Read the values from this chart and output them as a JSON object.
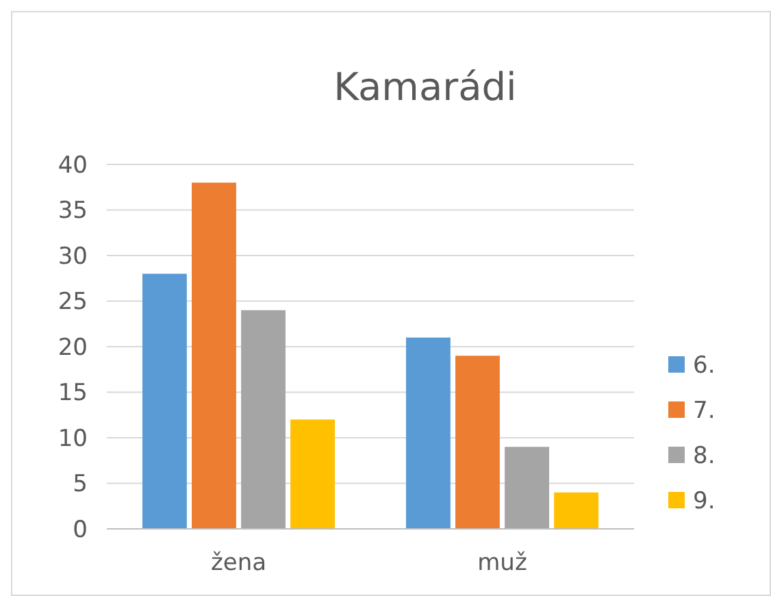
{
  "chart_data": {
    "type": "bar",
    "title": "Kamarádi",
    "categories": [
      "žena",
      "muž"
    ],
    "series": [
      {
        "name": "6.",
        "color": "#5b9bd5",
        "values": [
          28,
          21
        ]
      },
      {
        "name": "7.",
        "color": "#ed7d31",
        "values": [
          38,
          19
        ]
      },
      {
        "name": "8.",
        "color": "#a5a5a5",
        "values": [
          24,
          9
        ]
      },
      {
        "name": "9.",
        "color": "#ffc000",
        "values": [
          12,
          4
        ]
      }
    ],
    "ylim": [
      0,
      40
    ],
    "yticks": [
      0,
      5,
      10,
      15,
      20,
      25,
      30,
      35,
      40
    ],
    "grid": "y",
    "legend": "right"
  }
}
